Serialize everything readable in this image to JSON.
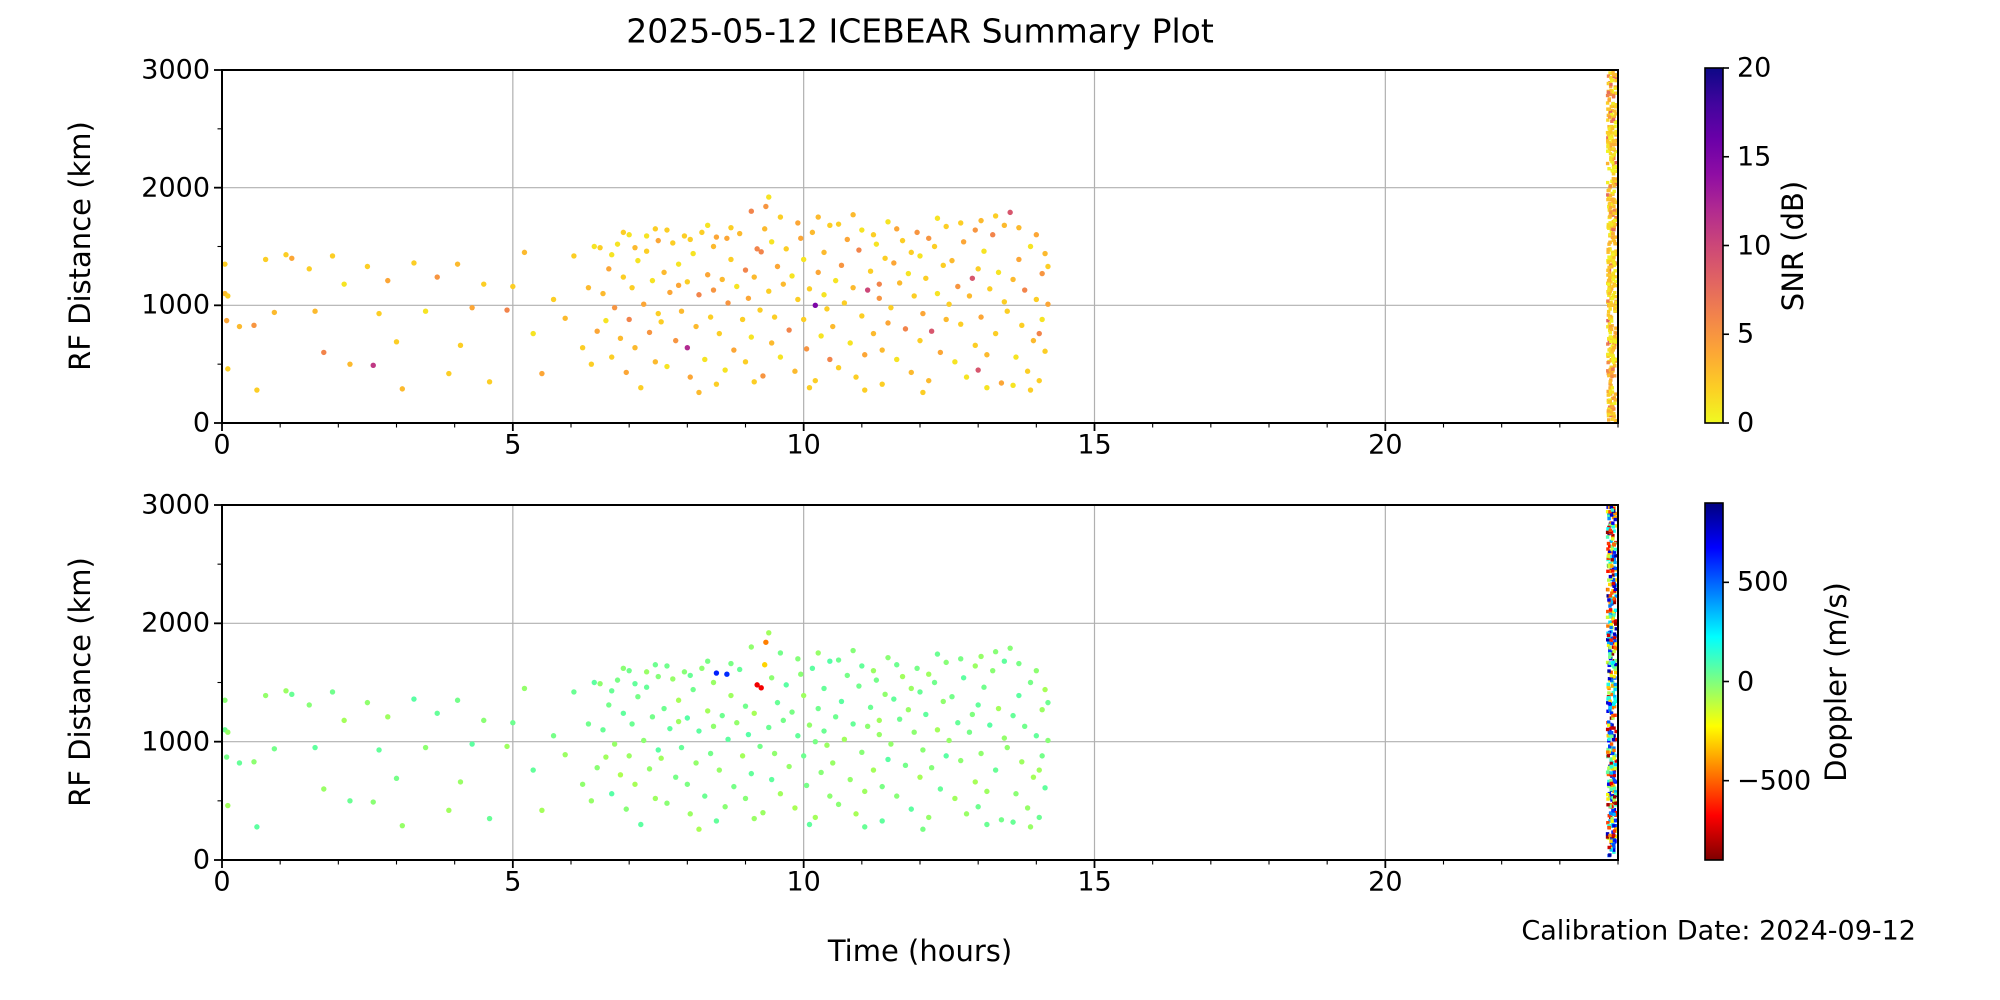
{
  "title": "2025-05-12 ICEBEAR Summary Plot",
  "xlabel": "Time (hours)",
  "calibration_text": "Calibration Date: 2024-09-12",
  "chart_data": {
    "type": "scatter",
    "title": "2025-05-12 ICEBEAR Summary Plot",
    "xlabel": "Time (hours)",
    "ylabel": "RF Distance (km)",
    "xlim": [
      0,
      24
    ],
    "ylim": [
      0,
      3000
    ],
    "xticks": [
      0,
      5,
      10,
      15,
      20
    ],
    "xtick_minor_step": 1,
    "yticks": [
      0,
      1000,
      2000,
      3000
    ],
    "ytick_minor_step": 500,
    "grid": true,
    "grid_color": "#b0b0b0",
    "background": "#ffffff",
    "marker_radius": 2.7,
    "panels": [
      {
        "id": "snr",
        "ylabel": "RF Distance (km)",
        "value_index": 2,
        "colorbar": {
          "label": "SNR (dB)",
          "ticks": [
            0,
            5,
            10,
            15,
            20
          ],
          "range": [
            0,
            20
          ],
          "colormap": "plasma_r",
          "base_stops": [
            "#0d0887",
            "#41049d",
            "#6a00a8",
            "#8f0da4",
            "#b12a90",
            "#cc4778",
            "#e16462",
            "#f2844b",
            "#fca636",
            "#fcce25",
            "#f0f921"
          ]
        }
      },
      {
        "id": "doppler",
        "ylabel": "RF Distance (km)",
        "value_index": 3,
        "colorbar": {
          "label": "Doppler (m/s)",
          "ticks": [
            500,
            0,
            -500
          ],
          "range": [
            -900,
            900
          ],
          "colormap": "jet_r",
          "base_stops": [
            "#00007f",
            "#0000ff",
            "#007fff",
            "#00ffff",
            "#7fff7f",
            "#ffff00",
            "#ff7f00",
            "#ff0000",
            "#7f0000"
          ]
        }
      }
    ],
    "points_format": [
      "hour",
      "rf_distance_km",
      "snr_db",
      "doppler_ms"
    ],
    "points": [
      [
        0.05,
        1350,
        2,
        -20
      ],
      [
        0.05,
        1100,
        3,
        30
      ],
      [
        0.1,
        1080,
        2,
        -40
      ],
      [
        0.08,
        870,
        4,
        15
      ],
      [
        0.1,
        460,
        2,
        -60
      ],
      [
        0.3,
        820,
        3,
        45
      ],
      [
        0.55,
        830,
        5,
        -25
      ],
      [
        0.6,
        280,
        2,
        60
      ],
      [
        0.75,
        1390,
        2,
        -35
      ],
      [
        0.9,
        940,
        3,
        20
      ],
      [
        1.1,
        1430,
        2,
        -50
      ],
      [
        1.2,
        1400,
        4,
        40
      ],
      [
        1.5,
        1310,
        2,
        -15
      ],
      [
        1.6,
        950,
        3,
        55
      ],
      [
        1.75,
        600,
        6,
        -45
      ],
      [
        1.9,
        1420,
        2,
        25
      ],
      [
        2.1,
        1180,
        1,
        -65
      ],
      [
        2.2,
        500,
        3,
        35
      ],
      [
        2.5,
        1330,
        2,
        -30
      ],
      [
        2.6,
        490,
        11,
        -20
      ],
      [
        2.7,
        930,
        2,
        50
      ],
      [
        2.85,
        1210,
        4,
        -55
      ],
      [
        3.0,
        690,
        2,
        15
      ],
      [
        3.1,
        290,
        3,
        -40
      ],
      [
        3.3,
        1360,
        2,
        65
      ],
      [
        3.5,
        950,
        1,
        -25
      ],
      [
        3.7,
        1240,
        5,
        45
      ],
      [
        3.9,
        420,
        2,
        -60
      ],
      [
        4.05,
        1350,
        3,
        20
      ],
      [
        4.1,
        660,
        2,
        -45
      ],
      [
        4.3,
        980,
        4,
        60
      ],
      [
        4.5,
        1180,
        2,
        -20
      ],
      [
        4.6,
        350,
        2,
        40
      ],
      [
        4.9,
        960,
        6,
        -55
      ],
      [
        5.0,
        1160,
        2,
        30
      ],
      [
        5.2,
        1450,
        3,
        -35
      ],
      [
        5.35,
        760,
        1,
        50
      ],
      [
        5.5,
        420,
        4,
        -65
      ],
      [
        5.7,
        1050,
        2,
        15
      ],
      [
        5.9,
        890,
        3,
        -50
      ],
      [
        6.05,
        1420,
        2,
        35
      ],
      [
        6.2,
        640,
        2,
        -30
      ],
      [
        6.3,
        1150,
        3,
        25
      ],
      [
        6.35,
        500,
        2,
        -40
      ],
      [
        6.4,
        1500,
        1,
        60
      ],
      [
        6.45,
        780,
        4,
        -20
      ],
      [
        6.5,
        1490,
        2,
        -30
      ],
      [
        6.55,
        1100,
        3,
        40
      ],
      [
        6.6,
        870,
        1,
        -60
      ],
      [
        6.65,
        1310,
        4,
        20
      ],
      [
        6.7,
        560,
        2,
        70
      ],
      [
        6.75,
        980,
        5,
        -40
      ],
      [
        6.8,
        1520,
        1,
        10
      ],
      [
        6.85,
        720,
        3,
        -80
      ],
      [
        6.9,
        1240,
        2,
        55
      ],
      [
        6.95,
        430,
        4,
        -15
      ],
      [
        7.0,
        1600,
        1,
        25
      ],
      [
        7.0,
        880,
        6,
        -50
      ],
      [
        7.05,
        1150,
        2,
        35
      ],
      [
        7.1,
        640,
        3,
        -70
      ],
      [
        7.15,
        1380,
        1,
        15
      ],
      [
        7.2,
        300,
        2,
        60
      ],
      [
        7.25,
        1010,
        4,
        -25
      ],
      [
        7.3,
        1460,
        2,
        45
      ],
      [
        7.35,
        770,
        5,
        -35
      ],
      [
        7.4,
        1210,
        1,
        20
      ],
      [
        7.45,
        520,
        3,
        -55
      ],
      [
        7.5,
        930,
        2,
        65
      ],
      [
        7.5,
        1550,
        4,
        -10
      ],
      [
        7.45,
        1650,
        2,
        30
      ],
      [
        7.3,
        1590,
        1,
        -45
      ],
      [
        7.1,
        1490,
        3,
        50
      ],
      [
        6.9,
        1620,
        2,
        -20
      ],
      [
        6.7,
        1430,
        1,
        40
      ],
      [
        7.55,
        860,
        2,
        -60
      ],
      [
        7.6,
        1280,
        3,
        30
      ],
      [
        7.65,
        480,
        1,
        -20
      ],
      [
        7.7,
        1110,
        4,
        55
      ],
      [
        7.75,
        1530,
        2,
        -40
      ],
      [
        7.8,
        700,
        5,
        15
      ],
      [
        7.85,
        1350,
        1,
        -70
      ],
      [
        7.9,
        950,
        3,
        45
      ],
      [
        7.95,
        1590,
        2,
        -15
      ],
      [
        8.0,
        640,
        12,
        5
      ],
      [
        8.0,
        1200,
        2,
        70
      ],
      [
        8.05,
        390,
        4,
        -50
      ],
      [
        8.1,
        1440,
        1,
        25
      ],
      [
        8.15,
        820,
        3,
        -35
      ],
      [
        8.2,
        1090,
        6,
        60
      ],
      [
        8.25,
        1620,
        2,
        -25
      ],
      [
        8.3,
        540,
        1,
        35
      ],
      [
        8.35,
        1260,
        4,
        -65
      ],
      [
        8.4,
        900,
        2,
        20
      ],
      [
        8.45,
        1500,
        3,
        -45
      ],
      [
        8.5,
        330,
        2,
        50
      ],
      [
        8.45,
        1130,
        5,
        -30
      ],
      [
        8.35,
        1680,
        1,
        10
      ],
      [
        8.2,
        260,
        3,
        -75
      ],
      [
        8.05,
        1560,
        2,
        40
      ],
      [
        7.85,
        1170,
        4,
        -55
      ],
      [
        7.65,
        1640,
        2,
        25
      ],
      [
        8.5,
        1580,
        4,
        620
      ],
      [
        8.68,
        1570,
        4,
        600
      ],
      [
        9.2,
        1480,
        6,
        -700
      ],
      [
        9.27,
        1455,
        6,
        -690
      ],
      [
        9.35,
        1840,
        5,
        -450
      ],
      [
        9.33,
        1650,
        3,
        -300
      ],
      [
        9.4,
        1920,
        1,
        -60
      ],
      [
        8.55,
        760,
        2,
        -40
      ],
      [
        8.6,
        1220,
        3,
        30
      ],
      [
        8.65,
        450,
        1,
        -20
      ],
      [
        8.7,
        1020,
        5,
        60
      ],
      [
        8.75,
        1390,
        2,
        -55
      ],
      [
        8.8,
        620,
        4,
        15
      ],
      [
        8.85,
        1160,
        1,
        -35
      ],
      [
        8.9,
        1610,
        3,
        45
      ],
      [
        8.95,
        880,
        2,
        -65
      ],
      [
        9.0,
        1300,
        6,
        25
      ],
      [
        9.0,
        520,
        2,
        -15
      ],
      [
        9.05,
        1060,
        4,
        70
      ],
      [
        9.1,
        1800,
        6,
        -30
      ],
      [
        9.1,
        730,
        1,
        50
      ],
      [
        9.15,
        1240,
        3,
        -70
      ],
      [
        9.25,
        960,
        2,
        20
      ],
      [
        9.3,
        400,
        5,
        -50
      ],
      [
        9.4,
        1120,
        2,
        35
      ],
      [
        9.45,
        1540,
        1,
        -25
      ],
      [
        9.45,
        680,
        3,
        55
      ],
      [
        9.15,
        350,
        2,
        -45
      ],
      [
        8.75,
        1660,
        2,
        10
      ],
      [
        9.5,
        900,
        2,
        -30
      ],
      [
        9.55,
        1330,
        4,
        40
      ],
      [
        9.6,
        560,
        1,
        -60
      ],
      [
        9.65,
        1180,
        3,
        20
      ],
      [
        9.7,
        1480,
        2,
        65
      ],
      [
        9.75,
        790,
        6,
        -40
      ],
      [
        9.8,
        1250,
        1,
        10
      ],
      [
        9.85,
        440,
        3,
        -75
      ],
      [
        9.9,
        1050,
        2,
        50
      ],
      [
        9.95,
        1570,
        4,
        -20
      ],
      [
        10.0,
        880,
        2,
        30
      ],
      [
        10.0,
        1390,
        1,
        -55
      ],
      [
        10.05,
        630,
        5,
        15
      ],
      [
        10.1,
        1140,
        2,
        -35
      ],
      [
        10.15,
        1620,
        3,
        60
      ],
      [
        10.2,
        1000,
        15,
        10
      ],
      [
        10.2,
        360,
        2,
        -65
      ],
      [
        10.25,
        1280,
        4,
        25
      ],
      [
        10.3,
        740,
        1,
        -15
      ],
      [
        10.35,
        1450,
        3,
        45
      ],
      [
        10.4,
        970,
        2,
        -50
      ],
      [
        10.45,
        1680,
        2,
        70
      ],
      [
        10.45,
        540,
        6,
        -25
      ],
      [
        10.35,
        1090,
        1,
        35
      ],
      [
        10.25,
        1750,
        3,
        -40
      ],
      [
        10.1,
        300,
        2,
        55
      ],
      [
        9.9,
        1700,
        4,
        -10
      ],
      [
        9.6,
        1750,
        2,
        20
      ],
      [
        10.5,
        820,
        3,
        -45
      ],
      [
        10.55,
        1210,
        1,
        30
      ],
      [
        10.6,
        470,
        2,
        -20
      ],
      [
        10.65,
        1340,
        5,
        60
      ],
      [
        10.7,
        1020,
        2,
        -60
      ],
      [
        10.75,
        1560,
        4,
        15
      ],
      [
        10.8,
        680,
        1,
        -35
      ],
      [
        10.85,
        1150,
        3,
        45
      ],
      [
        10.9,
        390,
        2,
        -70
      ],
      [
        10.95,
        1470,
        6,
        25
      ],
      [
        11.0,
        910,
        2,
        -15
      ],
      [
        11.0,
        1640,
        1,
        50
      ],
      [
        11.05,
        580,
        4,
        -55
      ],
      [
        11.1,
        1130,
        10,
        -25
      ],
      [
        11.15,
        1290,
        2,
        35
      ],
      [
        11.2,
        760,
        3,
        -65
      ],
      [
        11.25,
        1520,
        1,
        20
      ],
      [
        11.3,
        1060,
        5,
        -40
      ],
      [
        11.35,
        330,
        2,
        55
      ],
      [
        11.4,
        1400,
        2,
        -30
      ],
      [
        11.45,
        850,
        4,
        65
      ],
      [
        11.45,
        1710,
        1,
        -20
      ],
      [
        11.35,
        620,
        3,
        10
      ],
      [
        11.2,
        1600,
        2,
        -50
      ],
      [
        11.05,
        280,
        2,
        40
      ],
      [
        10.85,
        1770,
        3,
        -10
      ],
      [
        10.6,
        1690,
        2,
        30
      ],
      [
        11.3,
        1180,
        6,
        -60
      ],
      [
        11.5,
        980,
        2,
        -35
      ],
      [
        11.55,
        1360,
        4,
        50
      ],
      [
        11.6,
        540,
        1,
        -15
      ],
      [
        11.65,
        1190,
        3,
        30
      ],
      [
        11.7,
        1550,
        2,
        -60
      ],
      [
        11.75,
        800,
        6,
        20
      ],
      [
        11.8,
        1270,
        1,
        -45
      ],
      [
        11.85,
        430,
        3,
        60
      ],
      [
        11.9,
        1080,
        2,
        -25
      ],
      [
        11.95,
        1620,
        5,
        15
      ],
      [
        12.0,
        700,
        2,
        -70
      ],
      [
        12.0,
        1420,
        1,
        40
      ],
      [
        12.05,
        930,
        4,
        -20
      ],
      [
        12.1,
        1230,
        2,
        55
      ],
      [
        12.15,
        360,
        3,
        -40
      ],
      [
        12.2,
        780,
        9,
        -10
      ],
      [
        12.25,
        1500,
        2,
        25
      ],
      [
        12.3,
        1100,
        1,
        -65
      ],
      [
        12.35,
        600,
        4,
        45
      ],
      [
        12.4,
        1340,
        2,
        -30
      ],
      [
        12.45,
        880,
        3,
        65
      ],
      [
        12.45,
        1670,
        2,
        -15
      ],
      [
        12.3,
        1740,
        1,
        35
      ],
      [
        12.15,
        1570,
        5,
        -55
      ],
      [
        12.05,
        260,
        2,
        10
      ],
      [
        11.85,
        1450,
        2,
        -50
      ],
      [
        11.6,
        1650,
        4,
        30
      ],
      [
        12.5,
        1010,
        2,
        -40
      ],
      [
        12.55,
        1380,
        3,
        20
      ],
      [
        12.6,
        520,
        1,
        -60
      ],
      [
        12.65,
        1160,
        5,
        45
      ],
      [
        12.7,
        840,
        2,
        -25
      ],
      [
        12.75,
        1540,
        4,
        60
      ],
      [
        12.8,
        390,
        1,
        -45
      ],
      [
        12.85,
        1080,
        3,
        15
      ],
      [
        12.9,
        1230,
        9,
        0
      ],
      [
        12.95,
        660,
        2,
        -70
      ],
      [
        13.0,
        450,
        9,
        30
      ],
      [
        13.0,
        1310,
        2,
        50
      ],
      [
        13.05,
        900,
        4,
        -30
      ],
      [
        13.1,
        1460,
        1,
        25
      ],
      [
        13.15,
        580,
        3,
        -55
      ],
      [
        13.2,
        1140,
        2,
        65
      ],
      [
        13.25,
        1600,
        6,
        -20
      ],
      [
        13.3,
        760,
        2,
        40
      ],
      [
        13.35,
        1280,
        1,
        -65
      ],
      [
        13.4,
        340,
        4,
        20
      ],
      [
        13.45,
        1030,
        2,
        -35
      ],
      [
        13.45,
        1680,
        3,
        55
      ],
      [
        13.3,
        1760,
        2,
        -15
      ],
      [
        13.15,
        300,
        1,
        35
      ],
      [
        12.95,
        1640,
        5,
        -50
      ],
      [
        12.7,
        1700,
        2,
        10
      ],
      [
        13.05,
        1720,
        3,
        -40
      ],
      [
        13.5,
        950,
        2,
        -30
      ],
      [
        13.55,
        1790,
        9,
        -15
      ],
      [
        13.6,
        1220,
        3,
        45
      ],
      [
        13.65,
        560,
        1,
        -20
      ],
      [
        13.7,
        1390,
        4,
        60
      ],
      [
        13.75,
        830,
        2,
        -55
      ],
      [
        13.8,
        1130,
        6,
        25
      ],
      [
        13.85,
        440,
        2,
        -40
      ],
      [
        13.9,
        1500,
        1,
        15
      ],
      [
        13.95,
        700,
        3,
        -65
      ],
      [
        14.0,
        1050,
        2,
        50
      ],
      [
        14.0,
        1600,
        4,
        -25
      ],
      [
        14.05,
        360,
        2,
        35
      ],
      [
        14.1,
        1270,
        5,
        -50
      ],
      [
        14.1,
        880,
        1,
        20
      ],
      [
        14.15,
        1440,
        3,
        -70
      ],
      [
        14.15,
        610,
        2,
        55
      ],
      [
        14.2,
        1010,
        4,
        -15
      ],
      [
        14.2,
        1330,
        2,
        30
      ],
      [
        13.9,
        280,
        2,
        -45
      ],
      [
        13.7,
        1660,
        3,
        10
      ],
      [
        13.6,
        320,
        1,
        40
      ],
      [
        14.05,
        760,
        6,
        -60
      ]
    ],
    "calibration_stripe": {
      "hour_start": 23.82,
      "hour_end": 23.97,
      "km_min": 15,
      "km_max": 2985,
      "n_points": 460,
      "seed": 42,
      "snr_max": 3.8,
      "snr_fleck_max": 8,
      "doppler_abs_max": 880
    }
  }
}
